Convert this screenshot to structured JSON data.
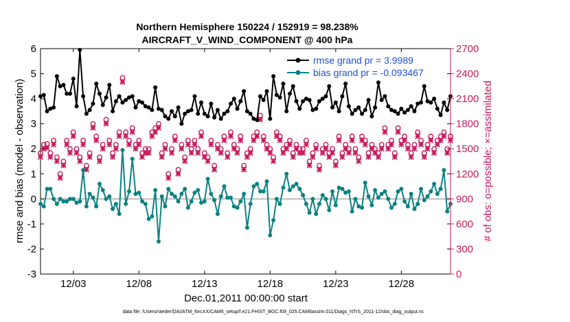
{
  "chart_data": {
    "type": "line",
    "title": "Northern Hemisphere 150224 / 152919 = 98.238%",
    "subtitle": "AIRCRAFT_V_WIND_COMPONENT @ 400 hPa",
    "xlabel": "Dec.01,2011 00:00:00 start",
    "ylabel": "rmse and bias (model - observation)",
    "ylabel_right": "# of obs: o=possible; ×=assimilated",
    "footnote": "data file: /Users/raeder/DAI/ATM_forcXX/CAM6_setup/f.e21.FHIST_BGC.f09_025.CAM6assim.011/Diags_NTrS_2011-12/obs_diag_output.nc",
    "x_range": [
      0.5,
      31.75
    ],
    "ylim": [
      -3,
      6
    ],
    "ylim_right": [
      0,
      2700
    ],
    "x_ticks": [
      {
        "value": 3,
        "label": "12/03"
      },
      {
        "value": 8,
        "label": "12/08"
      },
      {
        "value": 13,
        "label": "12/13"
      },
      {
        "value": 18,
        "label": "12/18"
      },
      {
        "value": 23,
        "label": "12/23"
      },
      {
        "value": 28,
        "label": "12/28"
      }
    ],
    "y_ticks": [
      "-3",
      "-2",
      "-1",
      "0",
      "1",
      "2",
      "3",
      "4",
      "5",
      "6"
    ],
    "y_ticks_right": [
      "0",
      "300",
      "600",
      "900",
      "1200",
      "1500",
      "1800",
      "2100",
      "2400",
      "2700"
    ],
    "legend": {
      "position": "top-right",
      "entries": [
        "rmse grand pr = 3.9989",
        "bias grand pr = -0.093467"
      ]
    },
    "colors": {
      "rmse": "#000000",
      "bias": "#0b8182",
      "obs": "#c8175a",
      "legend_text": "#1a4fd8",
      "zero_line": "#bbbbbb"
    },
    "x": [
      0.5,
      0.75,
      1.0,
      1.25,
      1.5,
      1.75,
      2.0,
      2.25,
      2.5,
      2.75,
      3.0,
      3.25,
      3.5,
      3.75,
      4.0,
      4.25,
      4.5,
      4.75,
      5.0,
      5.25,
      5.5,
      5.75,
      6.0,
      6.25,
      6.5,
      6.75,
      7.0,
      7.25,
      7.5,
      7.75,
      8.0,
      8.25,
      8.5,
      8.75,
      9.0,
      9.25,
      9.5,
      9.75,
      10.0,
      10.25,
      10.5,
      10.75,
      11.0,
      11.25,
      11.5,
      11.75,
      12.0,
      12.25,
      12.5,
      12.75,
      13.0,
      13.25,
      13.5,
      13.75,
      14.0,
      14.25,
      14.5,
      14.75,
      15.0,
      15.25,
      15.5,
      15.75,
      16.0,
      16.25,
      16.5,
      16.75,
      17.0,
      17.25,
      17.5,
      17.75,
      18.0,
      18.25,
      18.5,
      18.75,
      19.0,
      19.25,
      19.5,
      19.75,
      20.0,
      20.25,
      20.5,
      20.75,
      21.0,
      21.25,
      21.5,
      21.75,
      22.0,
      22.25,
      22.5,
      22.75,
      23.0,
      23.25,
      23.5,
      23.75,
      24.0,
      24.25,
      24.5,
      24.75,
      25.0,
      25.25,
      25.5,
      25.75,
      26.0,
      26.25,
      26.5,
      26.75,
      27.0,
      27.25,
      27.5,
      27.75,
      28.0,
      28.25,
      28.5,
      28.75,
      29.0,
      29.25,
      29.5,
      29.75,
      30.0,
      30.25,
      30.5,
      30.75,
      31.0,
      31.25,
      31.5,
      31.75
    ],
    "series": [
      {
        "name": "rmse",
        "values": [
          4.1,
          4.15,
          3.5,
          3.6,
          3.65,
          4.9,
          4.5,
          4.55,
          4.2,
          4.2,
          4.8,
          3.7,
          5.95,
          4.1,
          3.4,
          3.55,
          3.8,
          4.6,
          4.2,
          3.75,
          4.05,
          4.55,
          3.5,
          3.9,
          4.1,
          3.85,
          3.95,
          4.05,
          4.1,
          3.65,
          3.9,
          3.85,
          3.7,
          3.65,
          3.55,
          4.45,
          3.6,
          3.55,
          3.3,
          3.2,
          3.5,
          3.3,
          3.65,
          3.0,
          3.4,
          3.5,
          3.55,
          4.1,
          3.4,
          3.85,
          3.4,
          3.3,
          3.8,
          3.25,
          3.55,
          3.2,
          3.4,
          3.5,
          3.8,
          4.0,
          3.6,
          3.9,
          4.3,
          3.5,
          3.4,
          3.2,
          3.15,
          4.1,
          3.95,
          4.3,
          3.2,
          4.9,
          4.15,
          4.05,
          4.6,
          3.5,
          4.2,
          4.5,
          3.9,
          3.6,
          3.9,
          4.0,
          3.95,
          3.55,
          3.6,
          3.9,
          4.0,
          4.1,
          4.5,
          3.65,
          3.85,
          3.5,
          4.1,
          4.6,
          3.7,
          3.4,
          3.55,
          3.65,
          3.4,
          3.55,
          3.95,
          3.3,
          3.65,
          4.65,
          3.95,
          4.1,
          3.7,
          3.55,
          3.5,
          3.4,
          3.6,
          3.45,
          3.55,
          3.7,
          3.5,
          3.8,
          3.85,
          4.5,
          3.9,
          3.85,
          4.0,
          3.6,
          3.35,
          3.85,
          3.55,
          4.1
        ]
      },
      {
        "name": "bias",
        "values": [
          -0.2,
          -0.3,
          0.4,
          0.4,
          0.0,
          -0.2,
          0.0,
          -0.1,
          -0.1,
          0.0,
          0.0,
          -0.15,
          -0.1,
          1.15,
          -0.3,
          0.2,
          0.05,
          -0.3,
          0.6,
          0.35,
          0.0,
          0.1,
          -0.4,
          -0.2,
          -0.6,
          1.95,
          -0.2,
          0.3,
          1.6,
          0.2,
          0.25,
          -0.1,
          -0.2,
          -0.8,
          -0.7,
          0.35,
          -1.7,
          0.1,
          -0.3,
          0.4,
          0.2,
          0.1,
          -0.1,
          0.2,
          0.4,
          -0.35,
          -0.1,
          0.25,
          0.35,
          -0.15,
          -0.1,
          0.8,
          0.2,
          -0.05,
          -0.6,
          0.1,
          0.5,
          0.05,
          0.05,
          -0.3,
          -0.35,
          -0.1,
          0.2,
          -1.15,
          -0.2,
          0.5,
          0.6,
          0.3,
          0.3,
          0.7,
          -1.45,
          -0.85,
          0.0,
          -0.2,
          0.45,
          1.0,
          0.35,
          0.5,
          0.6,
          0.4,
          0.15,
          -0.2,
          -0.55,
          0.0,
          -0.6,
          -0.2,
          0.15,
          0.0,
          -0.45,
          0.3,
          -0.25,
          0.45,
          0.4,
          0.25,
          0.3,
          -0.5,
          0.0,
          -0.3,
          -0.35,
          0.65,
          0.1,
          -0.25,
          0.35,
          0.05,
          0.2,
          0.3,
          0.0,
          -0.35,
          -0.2,
          0.3,
          0.4,
          -0.1,
          -0.3,
          0.2,
          -0.4,
          -0.2,
          0.4,
          -0.05,
          0.1,
          0.3,
          0.6,
          0.2,
          0.4,
          1.15,
          -0.5,
          -0.2
        ]
      },
      {
        "name": "obs possible",
        "values": [
          1450,
          1550,
          1560,
          1450,
          1600,
          1400,
          1200,
          1350,
          1600,
          1500,
          1700,
          1500,
          1400,
          1600,
          1300,
          1450,
          1800,
          1650,
          1400,
          1550,
          1850,
          1600,
          1450,
          1550,
          1700,
          2350,
          1700,
          1600,
          1750,
          1550,
          1600,
          1450,
          1500,
          1500,
          1700,
          1750,
          1800,
          1450,
          1550,
          1200,
          1500,
          1650,
          1250,
          1550,
          1400,
          1600,
          1500,
          1600,
          1500,
          1700,
          1450,
          1400,
          1600,
          1300,
          1550,
          1500,
          1650,
          1450,
          1700,
          1550,
          1500,
          1650,
          1300,
          1450,
          1500,
          1650,
          1700,
          1900,
          1650,
          1550,
          1500,
          1400,
          1700,
          1650,
          1500,
          1550,
          1600,
          1450,
          1550,
          1500,
          1500,
          1600,
          1350,
          1450,
          1550,
          1300,
          1500,
          1550,
          1450,
          1500,
          1350,
          1650,
          1450,
          1550,
          1500,
          1650,
          1500,
          1400,
          1650,
          1600,
          1450,
          1550,
          1500,
          1450,
          1550,
          1750,
          1550,
          1600,
          1450,
          1750,
          1600,
          1650,
          1550,
          1450,
          1550,
          1700,
          1600,
          1450,
          1550,
          1650,
          1500,
          1600,
          1650,
          1700,
          1500,
          1650
        ]
      },
      {
        "name": "obs assimilated",
        "values": [
          1400,
          1500,
          1510,
          1400,
          1550,
          1350,
          1150,
          1300,
          1550,
          1450,
          1650,
          1450,
          1350,
          1550,
          1250,
          1400,
          1750,
          1600,
          1350,
          1500,
          1800,
          1550,
          1400,
          1500,
          1650,
          2300,
          1650,
          1550,
          1700,
          1500,
          1550,
          1400,
          1450,
          1450,
          1650,
          1700,
          1750,
          1400,
          1500,
          1150,
          1450,
          1600,
          1200,
          1500,
          1350,
          1550,
          1450,
          1550,
          1450,
          1650,
          1400,
          1350,
          1550,
          1250,
          1500,
          1450,
          1600,
          1400,
          1650,
          1500,
          1450,
          1600,
          1250,
          1400,
          1450,
          1600,
          1650,
          1850,
          1600,
          1500,
          1450,
          1350,
          1650,
          1600,
          1450,
          1500,
          1550,
          1400,
          1500,
          1450,
          1450,
          1550,
          1300,
          1400,
          1500,
          1250,
          1450,
          1500,
          1400,
          1450,
          1300,
          1600,
          1400,
          1500,
          1450,
          1600,
          1450,
          1350,
          1600,
          1550,
          1400,
          1500,
          1450,
          1400,
          1500,
          1700,
          1500,
          1550,
          1400,
          1700,
          1550,
          1600,
          1500,
          1400,
          1500,
          1650,
          1550,
          1400,
          1500,
          1600,
          1450,
          1550,
          1600,
          1650,
          1450,
          1600
        ]
      }
    ]
  }
}
